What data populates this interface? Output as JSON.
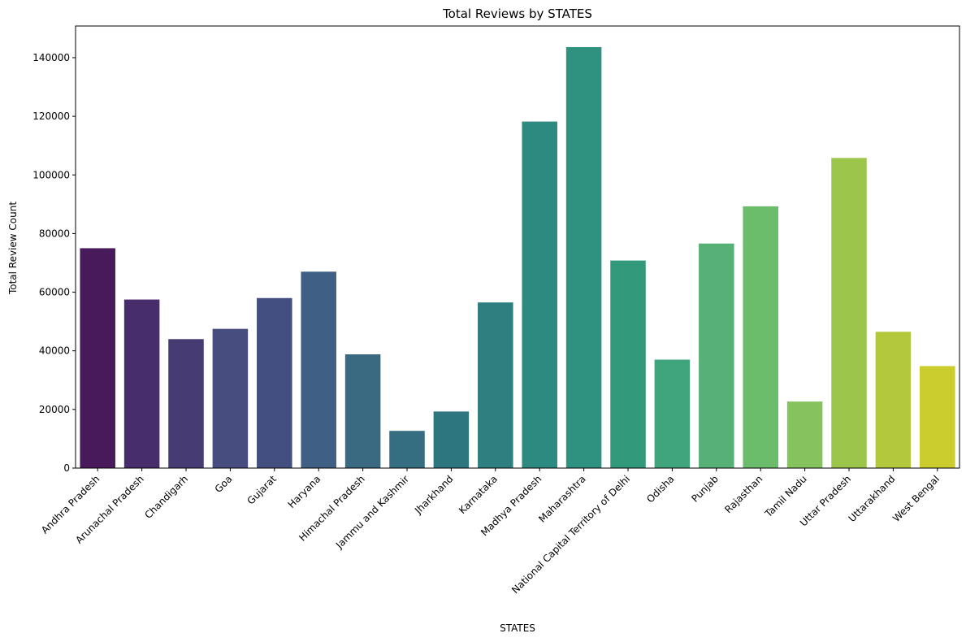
{
  "chart_data": {
    "type": "bar",
    "title": "Total Reviews by STATES",
    "xlabel": "STATES",
    "ylabel": "Total Review Count",
    "categories": [
      "Andhra Pradesh",
      "Arunachal Pradesh",
      "Chandigarh",
      "Goa",
      "Gujarat",
      "Haryana",
      "Himachal Pradesh",
      "Jammu and Kashmir",
      "Jharkhand",
      "Karnataka",
      "Madhya Pradesh",
      "Maharashtra",
      "National Capital Territory of Delhi",
      "Odisha",
      "Punjab",
      "Rajasthan",
      "Tamil Nadu",
      "Uttar Pradesh",
      "Uttarakhand",
      "West Bengal"
    ],
    "values": [
      75000,
      57500,
      44000,
      47500,
      58000,
      67000,
      38800,
      12700,
      19300,
      56500,
      118200,
      143600,
      70800,
      37000,
      76600,
      89300,
      22700,
      105800,
      46500,
      34800
    ],
    "colors": [
      "#481a5c",
      "#472d6b",
      "#473b73",
      "#474d7e",
      "#424f80",
      "#3f5f84",
      "#3a6a82",
      "#346e80",
      "#2e767f",
      "#2e7f7f",
      "#2d8a80",
      "#2f9180",
      "#33997b",
      "#40a47c",
      "#56b177",
      "#6bbd6b",
      "#85c45d",
      "#9cc64b",
      "#b3c83c",
      "#cbcc2e"
    ],
    "ylim": [
      0,
      150800
    ],
    "yticks": [
      0,
      20000,
      40000,
      60000,
      80000,
      100000,
      120000,
      140000
    ],
    "ytick_labels": [
      "0",
      "20000",
      "40000",
      "60000",
      "80000",
      "100000",
      "120000",
      "140000"
    ],
    "grid": false,
    "legend": "none"
  }
}
